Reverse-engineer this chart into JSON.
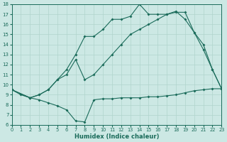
{
  "xlabel": "Humidex (Indice chaleur)",
  "bg_color": "#cce8e4",
  "line_color": "#1a6b5a",
  "grid_color": "#b0d4cc",
  "xlim": [
    0,
    23
  ],
  "ylim": [
    6,
    18
  ],
  "xticks": [
    0,
    1,
    2,
    3,
    4,
    5,
    6,
    7,
    8,
    9,
    10,
    11,
    12,
    13,
    14,
    15,
    16,
    17,
    18,
    19,
    20,
    21,
    22,
    23
  ],
  "yticks": [
    6,
    7,
    8,
    9,
    10,
    11,
    12,
    13,
    14,
    15,
    16,
    17,
    18
  ],
  "line1_x": [
    0,
    1,
    2,
    3,
    4,
    5,
    6,
    7,
    8,
    9,
    10,
    11,
    12,
    13,
    14,
    15,
    16,
    17,
    18,
    19,
    20,
    21,
    22,
    23
  ],
  "line1_y": [
    9.5,
    9.0,
    8.7,
    8.5,
    8.2,
    7.9,
    7.5,
    6.4,
    6.3,
    8.5,
    8.6,
    8.6,
    8.7,
    8.7,
    8.7,
    8.8,
    8.8,
    8.9,
    9.0,
    9.2,
    9.4,
    9.5,
    9.6,
    9.6
  ],
  "line2_x": [
    0,
    2,
    3,
    4,
    5,
    6,
    7,
    8,
    9,
    10,
    11,
    12,
    13,
    14,
    15,
    16,
    17,
    18,
    19,
    20,
    21,
    22,
    23
  ],
  "line2_y": [
    9.5,
    8.7,
    9.0,
    9.5,
    10.5,
    11.0,
    12.5,
    10.5,
    11.0,
    12.0,
    13.0,
    14.0,
    15.0,
    15.5,
    16.0,
    16.5,
    17.0,
    17.3,
    16.5,
    15.2,
    13.5,
    11.5,
    9.6
  ],
  "line3_x": [
    0,
    2,
    3,
    4,
    5,
    6,
    7,
    8,
    9,
    10,
    11,
    12,
    13,
    14,
    15,
    16,
    17,
    18,
    19,
    20,
    21,
    22,
    23
  ],
  "line3_y": [
    9.5,
    8.7,
    9.0,
    9.5,
    10.5,
    11.5,
    13.0,
    14.8,
    14.8,
    15.5,
    16.5,
    16.5,
    16.8,
    18.0,
    17.0,
    17.0,
    17.0,
    17.2,
    17.2,
    15.2,
    14.0,
    11.5,
    9.6
  ]
}
